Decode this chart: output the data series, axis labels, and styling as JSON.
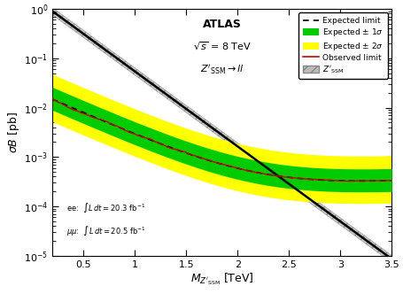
{
  "title": "ATLAS",
  "xlim": [
    0.2,
    3.5
  ],
  "ylim": [
    1e-05,
    1.0
  ],
  "color_1sigma": "#00cc00",
  "color_2sigma": "#ffff00",
  "color_observed": "#cc0000",
  "color_theory_fill": "#bbbbbb",
  "color_theory_edge": "#888888"
}
